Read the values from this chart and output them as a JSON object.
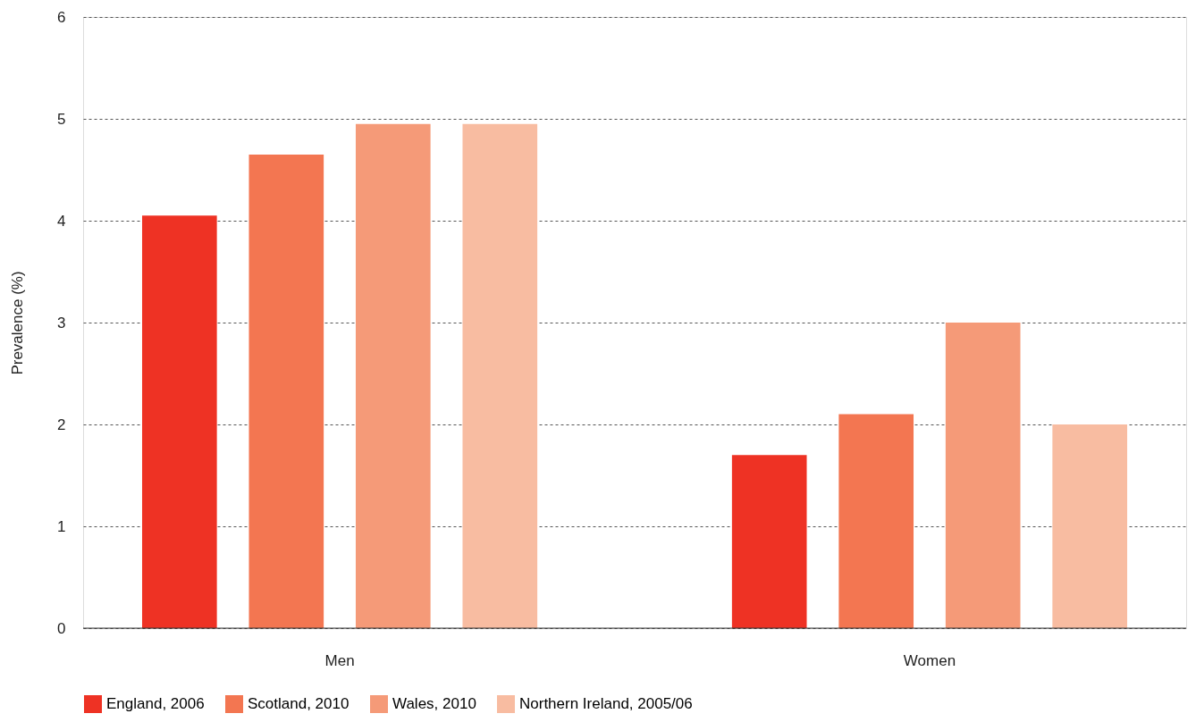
{
  "chart_data": {
    "type": "bar",
    "ylabel": "Prevalence (%)",
    "categories": [
      "Men",
      "Women"
    ],
    "series": [
      {
        "name": "England, 2006",
        "color": "#ee3224",
        "values": [
          4.05,
          1.7
        ]
      },
      {
        "name": "Scotland, 2010",
        "color": "#f37651",
        "values": [
          4.65,
          2.1
        ]
      },
      {
        "name": "Wales, 2010",
        "color": "#f59a78",
        "values": [
          4.95,
          3.0
        ]
      },
      {
        "name": "Northern Ireland, 2005/06",
        "color": "#f8bca1",
        "values": [
          4.95,
          2.0
        ]
      }
    ],
    "ylim": [
      0,
      6
    ],
    "yticks": [
      0,
      1,
      2,
      3,
      4,
      5,
      6
    ],
    "grid": "y",
    "legend": "bottom left"
  }
}
